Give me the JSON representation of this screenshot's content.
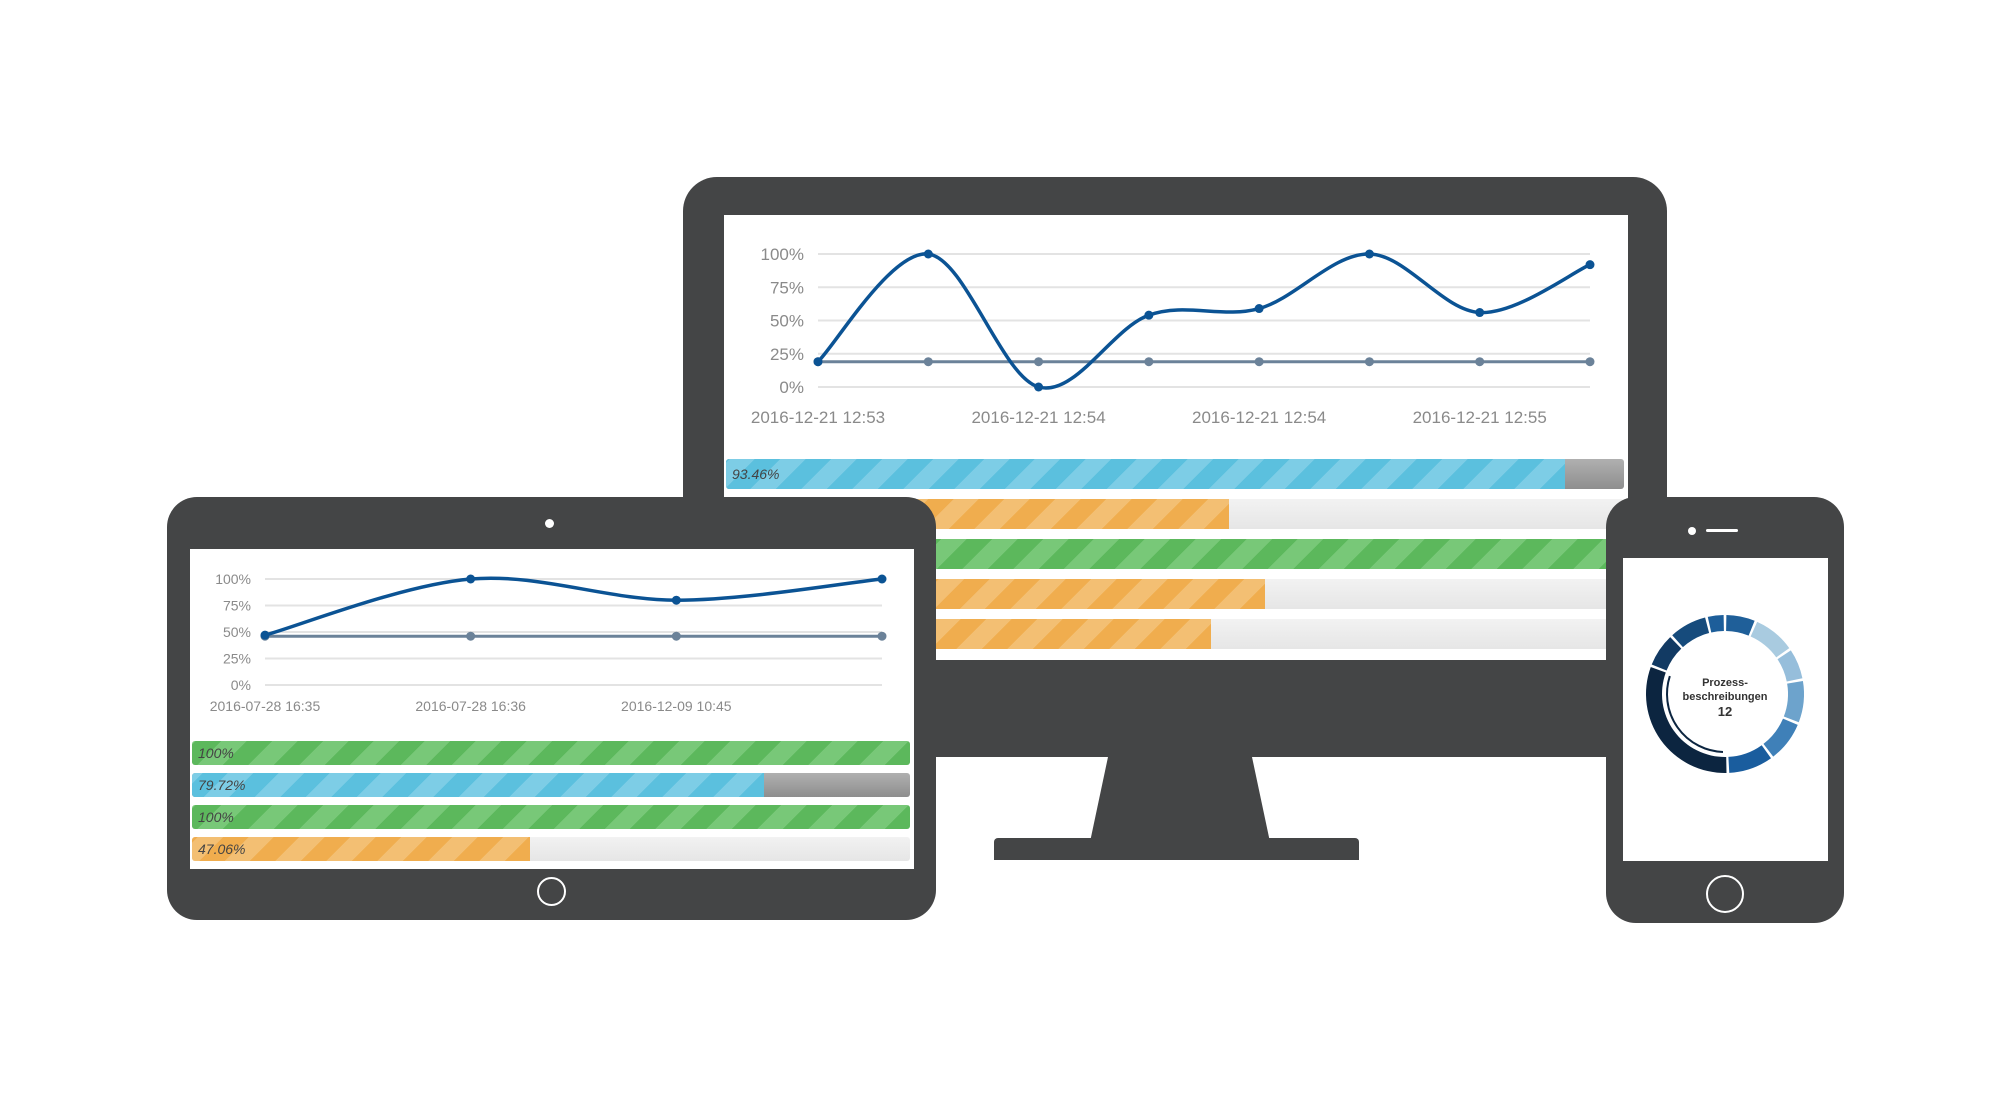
{
  "colors": {
    "bezel": "#444546",
    "line_primary": "#0b5394",
    "line_secondary": "#6b8299",
    "blue": "#5bc0de",
    "green": "#5cb85c",
    "orange": "#f0ad4e"
  },
  "desktop": {
    "chart_data": {
      "type": "line",
      "y_ticks": [
        "100%",
        "75%",
        "50%",
        "25%",
        "0%"
      ],
      "ylim": [
        0,
        100
      ],
      "x_labels": [
        "2016-12-21 12:53",
        "2016-12-21 12:54",
        "2016-12-21 12:54",
        "2016-12-21 12:55"
      ],
      "series": [
        {
          "values": [
            19,
            100,
            0,
            54,
            59,
            100,
            56,
            92
          ]
        },
        {
          "values": [
            19,
            19,
            19,
            19,
            19,
            19,
            19,
            19
          ]
        }
      ]
    },
    "bars": [
      {
        "value": 93.46,
        "label": "93.46%",
        "color": "blue"
      },
      {
        "value": 56,
        "label": "",
        "color": "orange"
      },
      {
        "value": 100,
        "label": "",
        "color": "green"
      },
      {
        "value": 60,
        "label": "",
        "color": "orange"
      },
      {
        "value": 54,
        "label": "",
        "color": "orange"
      }
    ]
  },
  "tablet": {
    "chart_data": {
      "type": "line",
      "y_ticks": [
        "100%",
        "75%",
        "50%",
        "25%",
        "0%"
      ],
      "ylim": [
        0,
        100
      ],
      "x_labels": [
        "2016-07-28 16:35",
        "2016-07-28 16:36",
        "2016-12-09 10:45"
      ],
      "series": [
        {
          "values": [
            47,
            100,
            80,
            100
          ]
        },
        {
          "values": [
            46,
            46,
            46,
            46
          ]
        }
      ]
    },
    "bars": [
      {
        "value": 100,
        "label": "100%",
        "color": "green"
      },
      {
        "value": 79.72,
        "label": "79.72%",
        "color": "blue"
      },
      {
        "value": 100,
        "label": "100%",
        "color": "green"
      },
      {
        "value": 47.06,
        "label": "47.06%",
        "color": "orange"
      }
    ]
  },
  "phone": {
    "donut": {
      "title_line1": "Prozess-",
      "title_line2": "beschreibungen",
      "count": "12",
      "segments": [
        {
          "value": 22,
          "color": "#1f5f99"
        },
        {
          "value": 31,
          "color": "#a9cbe0"
        },
        {
          "value": 23,
          "color": "#96bedb"
        },
        {
          "value": 31,
          "color": "#6da3cc"
        },
        {
          "value": 30,
          "color": "#3f80b8"
        },
        {
          "value": 33,
          "color": "#1a5d9e"
        },
        {
          "value": 108,
          "color": "#0c2540"
        },
        {
          "value": 25,
          "color": "#123a63"
        },
        {
          "value": 28,
          "color": "#164b7c"
        },
        {
          "value": 13,
          "color": "#1d5e9a"
        }
      ]
    }
  }
}
